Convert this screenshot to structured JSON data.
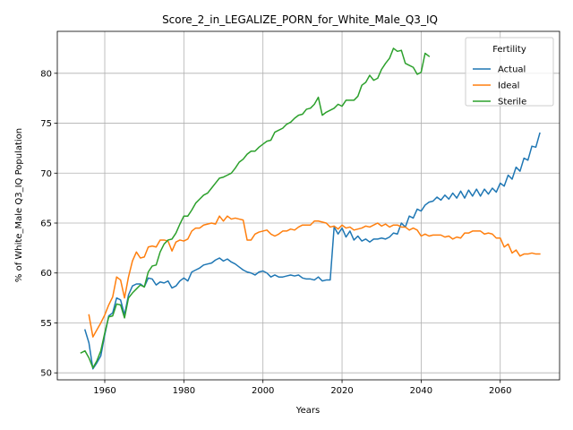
{
  "chart_data": {
    "type": "line",
    "title": "Score_2_in_LEGALIZE_PORN_for_White_Male_Q3_IQ",
    "xlabel": "Years",
    "ylabel": "% of White_Male Q3_IQ Population",
    "xlim": [
      1948,
      2075
    ],
    "ylim": [
      49.3,
      84.2
    ],
    "xticks": [
      1960,
      1980,
      2000,
      2020,
      2040,
      2060
    ],
    "yticks": [
      50,
      55,
      60,
      65,
      70,
      75,
      80
    ],
    "grid": true,
    "legend": {
      "title": "Fertility",
      "placement": "top-right"
    },
    "series": [
      {
        "name": "Actual",
        "color": "#1f77b4",
        "x": [
          1955,
          1956,
          1957,
          1958,
          1959,
          1960,
          1961,
          1962,
          1963,
          1964,
          1965,
          1966,
          1967,
          1968,
          1969,
          1970,
          1971,
          1972,
          1973,
          1974,
          1975,
          1976,
          1977,
          1978,
          1979,
          1980,
          1981,
          1982,
          1983,
          1984,
          1985,
          1986,
          1987,
          1988,
          1989,
          1990,
          1991,
          1992,
          1993,
          1994,
          1995,
          1996,
          1997,
          1998,
          1999,
          2000,
          2001,
          2002,
          2003,
          2004,
          2005,
          2006,
          2007,
          2008,
          2009,
          2010,
          2011,
          2012,
          2013,
          2014,
          2015,
          2016,
          2017,
          2018,
          2019,
          2020,
          2021,
          2022,
          2023,
          2024,
          2025,
          2026,
          2027,
          2028,
          2029,
          2030,
          2031,
          2032,
          2033,
          2034,
          2035,
          2036,
          2037,
          2038,
          2039,
          2040,
          2041,
          2042,
          2043,
          2044,
          2045,
          2046,
          2047,
          2048,
          2049,
          2050,
          2051,
          2052,
          2053,
          2054,
          2055,
          2056,
          2057,
          2058,
          2059,
          2060,
          2061,
          2062,
          2063,
          2064,
          2065,
          2066,
          2067,
          2068,
          2069,
          2070
        ],
        "values": [
          54.3,
          53.0,
          50.4,
          51.0,
          51.7,
          53.8,
          55.7,
          56.0,
          57.5,
          57.3,
          55.8,
          57.8,
          58.7,
          58.9,
          58.9,
          58.6,
          59.5,
          59.4,
          58.8,
          59.1,
          59.0,
          59.2,
          58.5,
          58.7,
          59.2,
          59.5,
          59.2,
          60.1,
          60.3,
          60.5,
          60.8,
          60.9,
          61.0,
          61.3,
          61.5,
          61.2,
          61.4,
          61.1,
          60.9,
          60.6,
          60.3,
          60.1,
          60.0,
          59.8,
          60.1,
          60.2,
          60.0,
          59.6,
          59.8,
          59.6,
          59.6,
          59.7,
          59.8,
          59.7,
          59.8,
          59.5,
          59.4,
          59.4,
          59.3,
          59.6,
          59.2,
          59.3,
          59.3,
          64.6,
          63.9,
          64.5,
          63.6,
          64.2,
          63.3,
          63.7,
          63.2,
          63.4,
          63.1,
          63.4,
          63.4,
          63.5,
          63.4,
          63.6,
          64.0,
          63.9,
          65.0,
          64.6,
          65.7,
          65.5,
          66.4,
          66.2,
          66.8,
          67.1,
          67.2,
          67.6,
          67.3,
          67.8,
          67.4,
          68.0,
          67.5,
          68.2,
          67.5,
          68.3,
          67.7,
          68.4,
          67.7,
          68.4,
          67.9,
          68.5,
          68.1,
          69.0,
          68.7,
          69.8,
          69.4,
          70.6,
          70.2,
          71.5,
          71.3,
          72.7,
          72.6,
          74.0
        ]
      },
      {
        "name": "Ideal",
        "color": "#ff7f0e",
        "x": [
          1956,
          1957,
          1958,
          1959,
          1960,
          1961,
          1962,
          1963,
          1964,
          1965,
          1966,
          1967,
          1968,
          1969,
          1970,
          1971,
          1972,
          1973,
          1974,
          1975,
          1976,
          1977,
          1978,
          1979,
          1980,
          1981,
          1982,
          1983,
          1984,
          1985,
          1986,
          1987,
          1988,
          1989,
          1990,
          1991,
          1992,
          1993,
          1994,
          1995,
          1996,
          1997,
          1998,
          1999,
          2000,
          2001,
          2002,
          2003,
          2004,
          2005,
          2006,
          2007,
          2008,
          2009,
          2010,
          2011,
          2012,
          2013,
          2014,
          2015,
          2016,
          2017,
          2018,
          2019,
          2020,
          2021,
          2022,
          2023,
          2024,
          2025,
          2026,
          2027,
          2028,
          2029,
          2030,
          2031,
          2032,
          2033,
          2034,
          2035,
          2036,
          2037,
          2038,
          2039,
          2040,
          2041,
          2042,
          2043,
          2044,
          2045,
          2046,
          2047,
          2048,
          2049,
          2050,
          2051,
          2052,
          2053,
          2054,
          2055,
          2056,
          2057,
          2058,
          2059,
          2060,
          2061,
          2062,
          2063,
          2064,
          2065,
          2066,
          2067,
          2068,
          2069,
          2070
        ],
        "values": [
          55.8,
          53.6,
          54.3,
          55.0,
          55.8,
          56.8,
          57.6,
          59.6,
          59.3,
          57.5,
          59.6,
          61.2,
          62.1,
          61.5,
          61.6,
          62.6,
          62.7,
          62.6,
          63.3,
          63.3,
          63.2,
          62.2,
          63.1,
          63.3,
          63.2,
          63.4,
          64.2,
          64.5,
          64.5,
          64.8,
          64.9,
          65.0,
          64.9,
          65.7,
          65.2,
          65.7,
          65.4,
          65.5,
          65.4,
          65.3,
          63.3,
          63.3,
          63.9,
          64.1,
          64.2,
          64.3,
          63.9,
          63.7,
          63.9,
          64.2,
          64.2,
          64.4,
          64.3,
          64.6,
          64.8,
          64.8,
          64.8,
          65.2,
          65.2,
          65.1,
          65.0,
          64.6,
          64.7,
          64.4,
          64.8,
          64.5,
          64.6,
          64.3,
          64.4,
          64.5,
          64.7,
          64.6,
          64.8,
          65.0,
          64.7,
          64.9,
          64.6,
          64.8,
          64.8,
          64.6,
          64.6,
          64.3,
          64.5,
          64.3,
          63.7,
          63.9,
          63.7,
          63.8,
          63.8,
          63.8,
          63.6,
          63.7,
          63.4,
          63.6,
          63.5,
          64.0,
          64.0,
          64.2,
          64.2,
          64.2,
          63.9,
          64.0,
          63.9,
          63.5,
          63.5,
          62.6,
          62.9,
          62.0,
          62.3,
          61.7,
          61.9,
          61.9,
          62.0,
          61.9,
          61.9
        ]
      },
      {
        "name": "Sterile",
        "color": "#2ca02c",
        "x": [
          1954,
          1955,
          1956,
          1957,
          1958,
          1959,
          1960,
          1961,
          1962,
          1963,
          1964,
          1965,
          1966,
          1967,
          1968,
          1969,
          1970,
          1971,
          1972,
          1973,
          1974,
          1975,
          1976,
          1977,
          1978,
          1979,
          1980,
          1981,
          1982,
          1983,
          1984,
          1985,
          1986,
          1987,
          1988,
          1989,
          1990,
          1991,
          1992,
          1993,
          1994,
          1995,
          1996,
          1997,
          1998,
          1999,
          2000,
          2001,
          2002,
          2003,
          2004,
          2005,
          2006,
          2007,
          2008,
          2009,
          2010,
          2011,
          2012,
          2013,
          2014,
          2015,
          2016,
          2017,
          2018,
          2019,
          2020,
          2021,
          2022,
          2023,
          2024,
          2025,
          2026,
          2027,
          2028,
          2029,
          2030,
          2031,
          2032,
          2033,
          2034,
          2035,
          2036,
          2037,
          2038,
          2039,
          2040,
          2041,
          2042
        ],
        "values": [
          52.0,
          52.2,
          51.5,
          50.5,
          51.2,
          52.2,
          54.0,
          55.6,
          55.7,
          56.9,
          56.8,
          55.5,
          57.5,
          58.0,
          58.4,
          58.8,
          58.6,
          60.1,
          60.7,
          60.8,
          62.1,
          62.9,
          63.3,
          63.4,
          64.0,
          64.9,
          65.7,
          65.7,
          66.3,
          67.0,
          67.4,
          67.8,
          68.0,
          68.5,
          69.0,
          69.5,
          69.6,
          69.8,
          70.0,
          70.5,
          71.1,
          71.4,
          71.9,
          72.2,
          72.2,
          72.6,
          72.9,
          73.2,
          73.3,
          74.1,
          74.3,
          74.5,
          74.9,
          75.1,
          75.5,
          75.8,
          75.9,
          76.4,
          76.5,
          76.9,
          77.6,
          75.8,
          76.1,
          76.3,
          76.5,
          76.9,
          76.7,
          77.3,
          77.3,
          77.3,
          77.7,
          78.8,
          79.1,
          79.8,
          79.3,
          79.5,
          80.4,
          81.0,
          81.5,
          82.5,
          82.2,
          82.3,
          81.0,
          80.8,
          80.6,
          79.9,
          80.1,
          82.0,
          81.7
        ]
      }
    ]
  }
}
